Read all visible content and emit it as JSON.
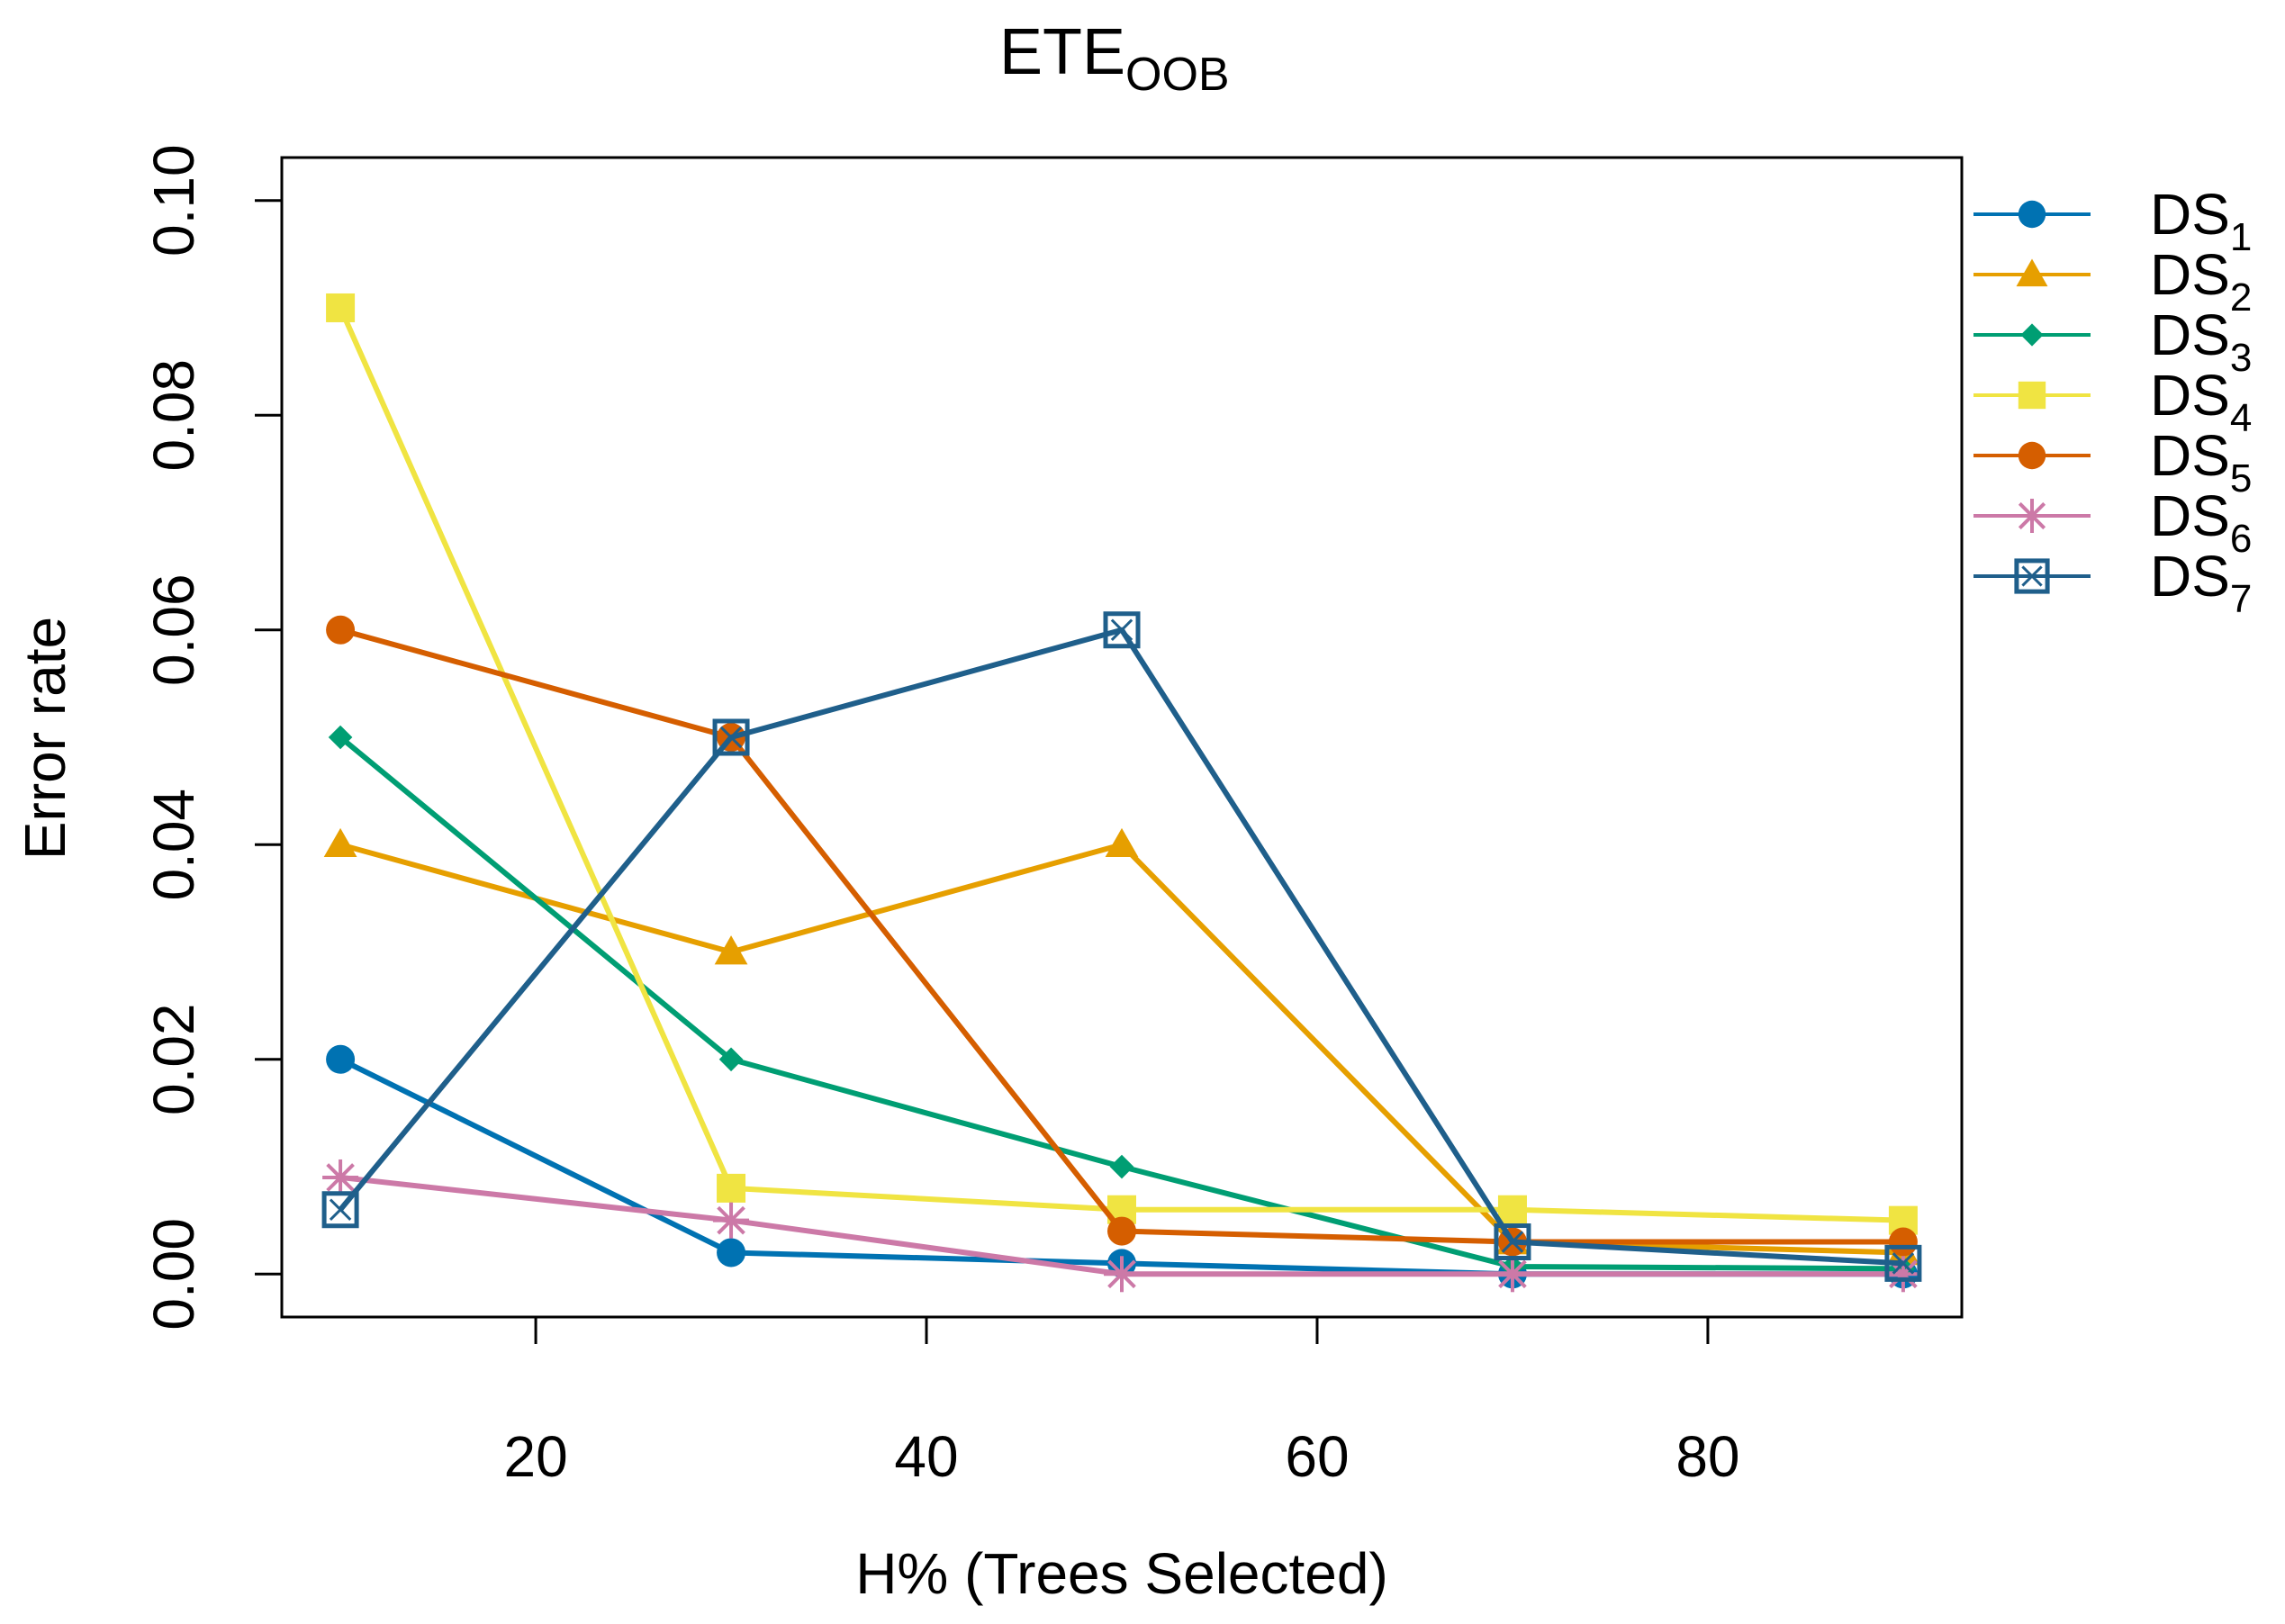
{
  "chart_data": {
    "type": "line",
    "title": "ETE",
    "title_subscript": "OOB",
    "xlabel": "H% (Trees Selected)",
    "ylabel": "Error rate",
    "xlim": [
      7,
      93
    ],
    "ylim": [
      -0.004,
      0.104
    ],
    "x_ticks": [
      20,
      40,
      60,
      80
    ],
    "x_tick_labels": [
      "20",
      "40",
      "60",
      "80"
    ],
    "y_ticks": [
      0.0,
      0.02,
      0.04,
      0.06,
      0.08,
      0.1
    ],
    "y_tick_labels": [
      "0.00",
      "0.02",
      "0.04",
      "0.06",
      "0.08",
      "0.10"
    ],
    "legend_position": "right",
    "x": [
      10,
      30,
      50,
      70,
      90
    ],
    "series": [
      {
        "name": "DS",
        "subscript": "1",
        "color": "#0072B2",
        "marker": "circle",
        "values": [
          0.02,
          0.002,
          0.001,
          0.0,
          0.0
        ]
      },
      {
        "name": "DS",
        "subscript": "2",
        "color": "#E69F00",
        "marker": "triangle",
        "values": [
          0.04,
          0.03,
          0.04,
          0.003,
          0.002
        ]
      },
      {
        "name": "DS",
        "subscript": "3",
        "color": "#009E73",
        "marker": "diamond",
        "values": [
          0.05,
          0.02,
          0.01,
          0.0007,
          0.0005
        ]
      },
      {
        "name": "DS",
        "subscript": "4",
        "color": "#F0E442",
        "marker": "square",
        "values": [
          0.09,
          0.008,
          0.006,
          0.006,
          0.005
        ]
      },
      {
        "name": "DS",
        "subscript": "5",
        "color": "#D55E00",
        "marker": "circle",
        "values": [
          0.06,
          0.05,
          0.004,
          0.003,
          0.003
        ]
      },
      {
        "name": "DS",
        "subscript": "6",
        "color": "#CC79A7",
        "marker": "asterisk",
        "values": [
          0.009,
          0.005,
          0.0,
          0.0,
          0.0
        ]
      },
      {
        "name": "DS",
        "subscript": "7",
        "color": "#1F5F8B",
        "marker": "boxx",
        "values": [
          0.006,
          0.05,
          0.06,
          0.003,
          0.001
        ]
      }
    ]
  }
}
